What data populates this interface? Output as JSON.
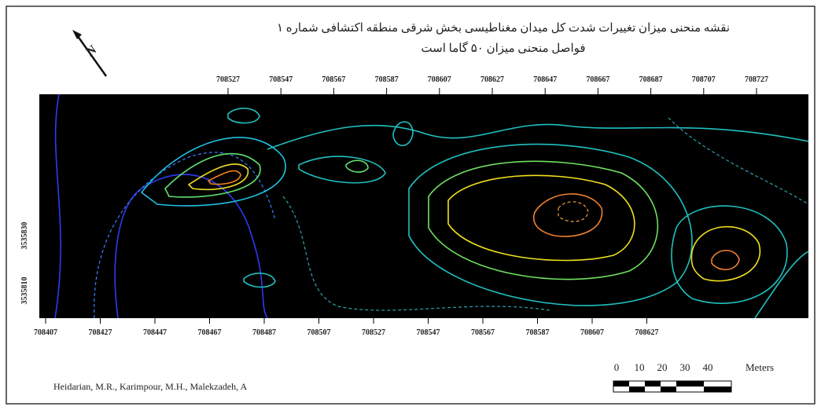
{
  "header": {
    "title_line1": "نقشه منحنی میزان تغییرات شدت کل میدان مغناطیسی بخش شرقی منطقه اکتشافی شماره ۱",
    "title_line2": "فواصل منحنی میزان ۵۰ گاما است",
    "north": "N"
  },
  "axes": {
    "top": [
      708527,
      708547,
      708567,
      708587,
      708607,
      708627,
      708647,
      708667,
      708687,
      708707,
      708727
    ],
    "bottom": [
      708407,
      708427,
      708447,
      708467,
      708487,
      708507,
      708527,
      708547,
      708567,
      708587,
      708607,
      708627
    ],
    "left": [
      3535830,
      3535810
    ]
  },
  "scale": {
    "labels": [
      0,
      10,
      20,
      30,
      40
    ],
    "unit": "Meters"
  },
  "credit": "Heidarian, M.R., Karimpour, M.H., Malekzadeh, A"
}
